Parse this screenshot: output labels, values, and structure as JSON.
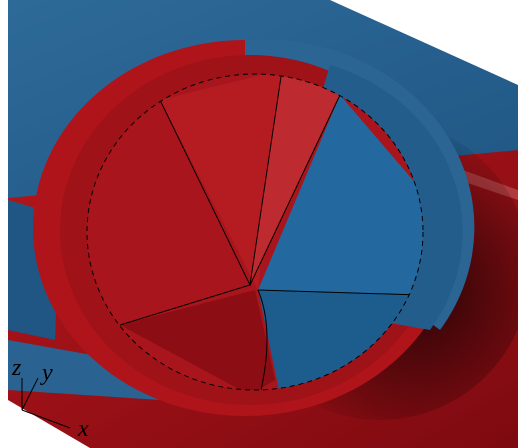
{
  "axis_labels": {
    "z": "z",
    "y": "y",
    "x": "x"
  }
}
